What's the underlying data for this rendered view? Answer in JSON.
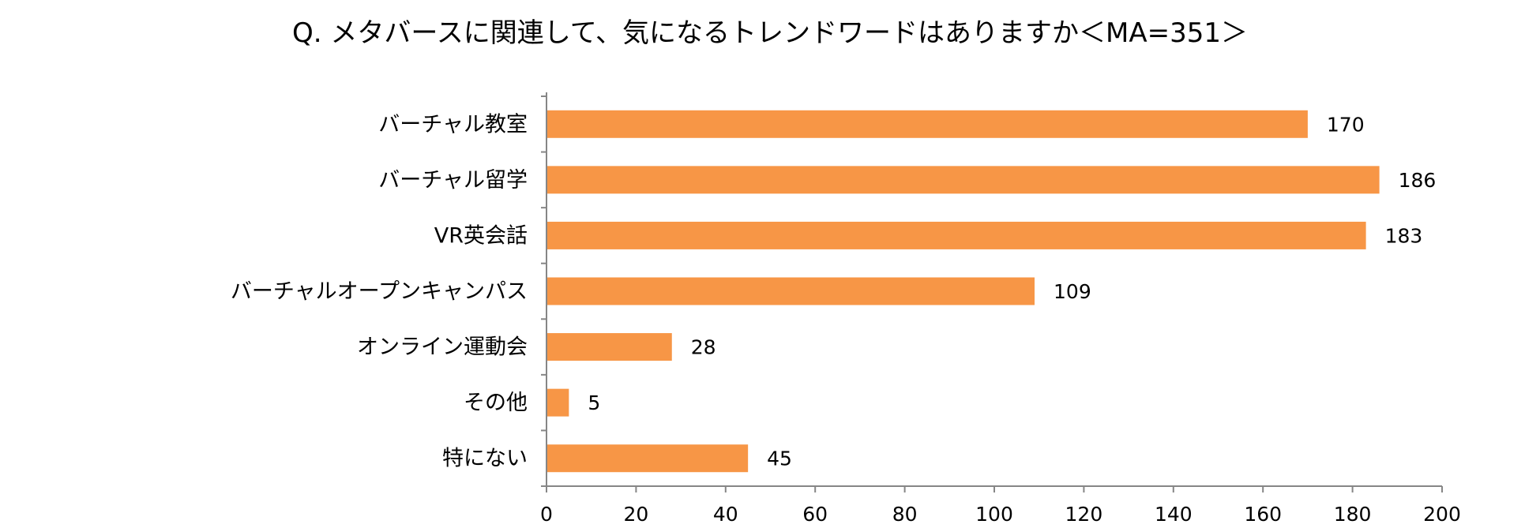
{
  "chart_data": {
    "type": "bar",
    "orientation": "horizontal",
    "title": "Q. メタバースに関連して、気になるトレンドワードはありますか＜MA=351＞",
    "categories": [
      "バーチャル教室",
      "バーチャル留学",
      "VR英会話",
      "バーチャルオープンキャンパス",
      "オンライン運動会",
      "その他",
      "特にない"
    ],
    "values": [
      170,
      186,
      183,
      109,
      28,
      5,
      45
    ],
    "xlim": [
      0,
      200
    ],
    "xticks": [
      0,
      20,
      40,
      60,
      80,
      100,
      120,
      140,
      160,
      180,
      200
    ],
    "xlabel": "",
    "ylabel": "",
    "grid": false,
    "legend": "none",
    "bar_color": "#F79646",
    "axis_color": "#868686",
    "data_labels": true
  }
}
